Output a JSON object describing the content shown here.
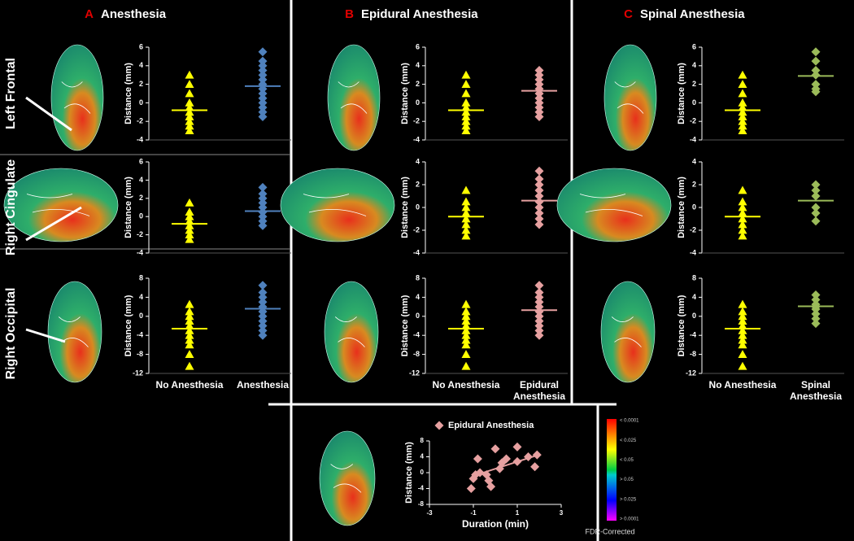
{
  "panels": [
    {
      "letter": "A",
      "title": "Anesthesia"
    },
    {
      "letter": "B",
      "title": "Epidural Anesthesia"
    },
    {
      "letter": "C",
      "title": "Spinal Anesthesia"
    }
  ],
  "rows": [
    "Left Frontal",
    "Right Cingulate",
    "Right Occipital"
  ],
  "colorbar": {
    "labels": [
      "< 0.0001",
      "< 0.025",
      "< 0.05",
      "> 0.05",
      "> 0.025",
      "> 0.0001"
    ],
    "title": "FDR-Corrected"
  },
  "chart_data": [
    {
      "type": "strip",
      "ylabel": "Distance (mm)",
      "ylim": [
        -4,
        6
      ],
      "yticks": [
        -4,
        -2,
        0,
        2,
        4,
        6
      ],
      "series": [
        {
          "color": "#ffff00",
          "marker": "triangle",
          "values": [
            3,
            2,
            1,
            0,
            -0.5,
            -1,
            -1.5,
            -2,
            -2.5,
            -3
          ],
          "mean": -0.8
        },
        {
          "color": "#4f81bd",
          "marker": "diamond",
          "values": [
            5.5,
            4.5,
            4,
            3.5,
            3,
            2.5,
            2,
            1.5,
            1,
            0.5,
            0,
            -0.5,
            -1,
            -1.5
          ],
          "mean": 1.8
        }
      ]
    },
    {
      "type": "strip",
      "ylabel": "Distance (mm)",
      "ylim": [
        -4,
        6
      ],
      "yticks": [
        -4,
        -2,
        0,
        2,
        4,
        6
      ],
      "series": [
        {
          "color": "#ffff00",
          "marker": "triangle",
          "values": [
            1.5,
            0.5,
            0,
            -0.5,
            -1,
            -1.5,
            -2,
            -2.5
          ],
          "mean": -0.8
        },
        {
          "color": "#4f81bd",
          "marker": "diamond",
          "values": [
            3.2,
            2.5,
            2,
            1.5,
            1,
            0.5,
            0,
            -0.5,
            -1
          ],
          "mean": 0.6
        }
      ]
    },
    {
      "type": "strip",
      "ylabel": "Distance (mm)",
      "ylim": [
        -12,
        8
      ],
      "yticks": [
        -12,
        -8,
        -4,
        0,
        4,
        8
      ],
      "categories": [
        "No Anesthesia",
        "Anesthesia"
      ],
      "series": [
        {
          "color": "#ffff00",
          "marker": "triangle",
          "values": [
            2.5,
            1,
            0,
            -1,
            -2,
            -3,
            -4,
            -5,
            -6,
            -8,
            -10.5
          ],
          "mean": -2.6
        },
        {
          "color": "#4f81bd",
          "marker": "diamond",
          "values": [
            6.5,
            5,
            4,
            3,
            2,
            1,
            0,
            -1,
            -2,
            -3,
            -4
          ],
          "mean": 1.6
        }
      ]
    },
    {
      "type": "strip",
      "ylabel": "Distance (mm)",
      "ylim": [
        -4,
        6
      ],
      "yticks": [
        -4,
        -2,
        0,
        2,
        4,
        6
      ],
      "series": [
        {
          "color": "#ffff00",
          "marker": "triangle",
          "values": [
            3,
            2,
            1,
            0,
            -0.5,
            -1,
            -1.5,
            -2,
            -2.5,
            -3
          ],
          "mean": -0.8
        },
        {
          "color": "#e6a0a0",
          "marker": "diamond",
          "values": [
            3.5,
            3,
            2.5,
            2,
            1.5,
            1,
            0.5,
            0,
            -0.5,
            -1,
            -1.5
          ],
          "mean": 1.3
        }
      ]
    },
    {
      "type": "strip",
      "ylabel": "Distance (mm)",
      "ylim": [
        -4,
        4
      ],
      "yticks": [
        -4,
        -2,
        0,
        2,
        4
      ],
      "series": [
        {
          "color": "#ffff00",
          "marker": "triangle",
          "values": [
            1.5,
            0.5,
            0,
            -0.5,
            -1,
            -1.5,
            -2,
            -2.5
          ],
          "mean": -0.8
        },
        {
          "color": "#e6a0a0",
          "marker": "diamond",
          "values": [
            3.2,
            2.5,
            2,
            1.5,
            1,
            0.5,
            0,
            -0.5,
            -1,
            -1.5
          ],
          "mean": 0.6
        }
      ]
    },
    {
      "type": "strip",
      "ylabel": "Distance (mm)",
      "ylim": [
        -12,
        8
      ],
      "yticks": [
        -12,
        -8,
        -4,
        0,
        4,
        8
      ],
      "categories": [
        "No Anesthesia",
        "Epidural Anesthesia"
      ],
      "series": [
        {
          "color": "#ffff00",
          "marker": "triangle",
          "values": [
            2.5,
            1,
            0,
            -1,
            -2,
            -3,
            -4,
            -5,
            -6,
            -8,
            -10.5
          ],
          "mean": -2.6
        },
        {
          "color": "#e6a0a0",
          "marker": "diamond",
          "values": [
            6.5,
            5,
            4,
            3,
            2,
            1,
            0,
            -1,
            -2,
            -3,
            -4
          ],
          "mean": 1.3
        }
      ]
    },
    {
      "type": "strip",
      "ylabel": "Distance (mm)",
      "ylim": [
        -4,
        6
      ],
      "yticks": [
        -4,
        -2,
        0,
        2,
        4,
        6
      ],
      "series": [
        {
          "color": "#ffff00",
          "marker": "triangle",
          "values": [
            3,
            2,
            1,
            0,
            -0.5,
            -1,
            -1.5,
            -2,
            -2.5,
            -3
          ],
          "mean": -0.8
        },
        {
          "color": "#9bbb59",
          "marker": "diamond",
          "values": [
            5.5,
            4.5,
            3.5,
            3,
            2,
            1.5,
            1.2
          ],
          "mean": 2.9
        }
      ]
    },
    {
      "type": "strip",
      "ylabel": "Distance (mm)",
      "ylim": [
        -4,
        4
      ],
      "yticks": [
        -4,
        -2,
        0,
        2,
        4
      ],
      "series": [
        {
          "color": "#ffff00",
          "marker": "triangle",
          "values": [
            1.5,
            0.5,
            0,
            -0.5,
            -1,
            -1.5,
            -2,
            -2.5
          ],
          "mean": -0.8
        },
        {
          "color": "#9bbb59",
          "marker": "diamond",
          "values": [
            2,
            1.5,
            1,
            0,
            -0.5,
            -1.2
          ],
          "mean": 0.6
        }
      ]
    },
    {
      "type": "strip",
      "ylabel": "Distance (mm)",
      "ylim": [
        -12,
        8
      ],
      "yticks": [
        -12,
        -8,
        -4,
        0,
        4,
        8
      ],
      "categories": [
        "No Anesthesia",
        "Spinal Anesthesia"
      ],
      "series": [
        {
          "color": "#ffff00",
          "marker": "triangle",
          "values": [
            2.5,
            1,
            0,
            -1,
            -2,
            -3,
            -4,
            -5,
            -6,
            -8,
            -10.5
          ],
          "mean": -2.6
        },
        {
          "color": "#9bbb59",
          "marker": "diamond",
          "values": [
            4.5,
            3.5,
            2.5,
            2,
            1.5,
            0.5,
            -0.5,
            -1.5
          ],
          "mean": 2.1
        }
      ]
    },
    {
      "type": "scatter",
      "xlabel": "Duration (min)",
      "ylabel": "Distance (mm)",
      "xlim": [
        -3,
        3
      ],
      "xticks": [
        -3,
        -1,
        1,
        3
      ],
      "ylim": [
        -8,
        8
      ],
      "yticks": [
        -8,
        -4,
        0,
        4,
        8
      ],
      "series": [
        {
          "name": "Epidural Anesthesia",
          "color": "#e6a0a0",
          "x": [
            -1.1,
            -1,
            -0.9,
            -0.8,
            -0.7,
            -0.4,
            -0.3,
            -0.2,
            0,
            0.2,
            0.3,
            0.5,
            1,
            1,
            1.5,
            1.8,
            1.9
          ],
          "values": [
            -4,
            -1.5,
            -0.5,
            3.5,
            0,
            -0.5,
            -2,
            -3.5,
            6,
            1,
            2.5,
            3.5,
            6.5,
            2.8,
            4,
            1.5,
            4.5
          ]
        }
      ],
      "trendline": {
        "x": [
          -1,
          1.8
        ],
        "y": [
          -0.8,
          4.2
        ]
      }
    }
  ]
}
